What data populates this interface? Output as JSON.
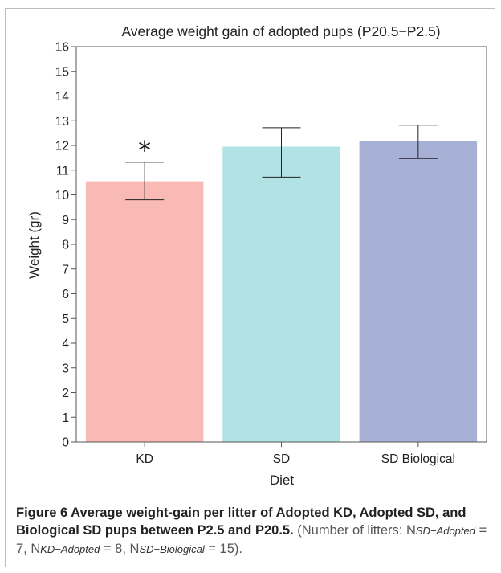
{
  "chart_data": {
    "type": "bar",
    "title": "Average weight gain of adopted pups (P20.5−P2.5)",
    "xlabel": "Diet",
    "ylabel": "Weight (gr)",
    "ylim": [
      0,
      16
    ],
    "yticks": [
      0,
      1,
      2,
      3,
      4,
      5,
      6,
      7,
      8,
      9,
      10,
      11,
      12,
      13,
      14,
      15,
      16
    ],
    "categories": [
      "KD",
      "SD",
      "SD Biological"
    ],
    "values": [
      10.55,
      11.95,
      12.18
    ],
    "error_low": [
      9.8,
      10.72,
      11.47
    ],
    "error_high": [
      11.32,
      12.72,
      12.82
    ],
    "colors": [
      "#f9b9b4",
      "#b1e3e5",
      "#a7b1d8"
    ],
    "annotations": [
      {
        "category": "KD",
        "text": "*"
      }
    ],
    "grid": false,
    "legend": "none"
  },
  "caption": {
    "bold": "Figure 6 Average weight-gain per litter of Adopted KD, Adopted SD, and Biological SD pups between P2.5 and P20.5.",
    "open": " (Number of litters: N",
    "sub1": "SD−Adopted",
    "mid1": " = 7, N",
    "sub2": "KD−Adopted",
    "mid2": " = 8, N",
    "sub3": "SD−Biological",
    "close": " = 15)."
  }
}
